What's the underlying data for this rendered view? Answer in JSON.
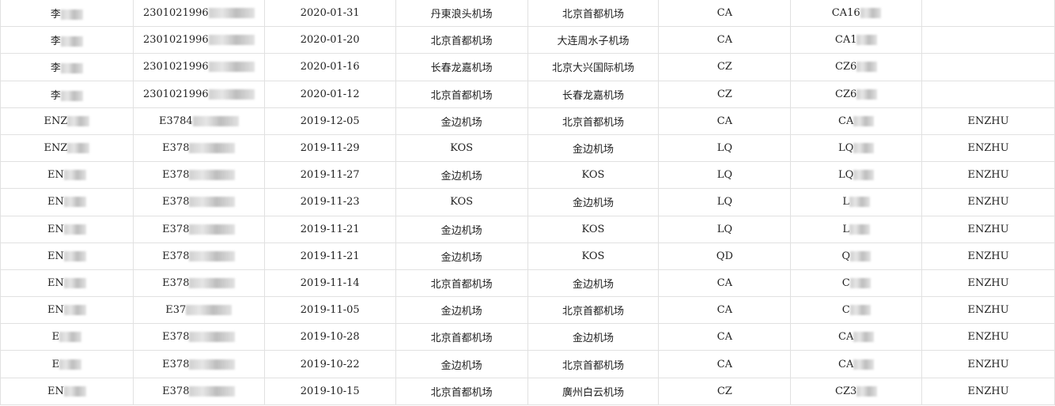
{
  "rows": [
    {
      "name": "李",
      "id": "2301021996",
      "date": "2020-01-31",
      "from": "丹東浪头机场",
      "to": "北京首都机场",
      "airline": "CA",
      "flight": "CA16",
      "note": ""
    },
    {
      "name": "李",
      "id": "2301021996",
      "date": "2020-01-20",
      "from": "北京首都机场",
      "to": "大连周水子机场",
      "airline": "CA",
      "flight": "CA1",
      "note": ""
    },
    {
      "name": "李",
      "id": "2301021996",
      "date": "2020-01-16",
      "from": "长春龙嘉机场",
      "to": "北京大兴国际机场",
      "airline": "CZ",
      "flight": "CZ6",
      "note": ""
    },
    {
      "name": "李",
      "id": "2301021996",
      "date": "2020-01-12",
      "from": "北京首都机场",
      "to": "长春龙嘉机场",
      "airline": "CZ",
      "flight": "CZ6",
      "note": ""
    },
    {
      "name": "ENZ",
      "id": "E3784",
      "date": "2019-12-05",
      "from": "金边机场",
      "to": "北京首都机场",
      "airline": "CA",
      "flight": "CA",
      "note": "ENZHU"
    },
    {
      "name": "ENZ",
      "id": "E378",
      "date": "2019-11-29",
      "from": "KOS",
      "to": "金边机场",
      "airline": "LQ",
      "flight": "LQ",
      "note": "ENZHU"
    },
    {
      "name": "EN",
      "id": "E378",
      "date": "2019-11-27",
      "from": "金边机场",
      "to": "KOS",
      "airline": "LQ",
      "flight": "LQ",
      "note": "ENZHU"
    },
    {
      "name": "EN",
      "id": "E378",
      "date": "2019-11-23",
      "from": "KOS",
      "to": "金边机场",
      "airline": "LQ",
      "flight": "L",
      "note": "ENZHU"
    },
    {
      "name": "EN",
      "id": "E378",
      "date": "2019-11-21",
      "from": "金边机场",
      "to": "KOS",
      "airline": "LQ",
      "flight": "L",
      "note": "ENZHU"
    },
    {
      "name": "EN",
      "id": "E378",
      "date": "2019-11-21",
      "from": "金边机场",
      "to": "KOS",
      "airline": "QD",
      "flight": "Q",
      "note": "ENZHU"
    },
    {
      "name": "EN",
      "id": "E378",
      "date": "2019-11-14",
      "from": "北京首都机场",
      "to": "金边机场",
      "airline": "CA",
      "flight": "C",
      "note": "ENZHU"
    },
    {
      "name": "EN",
      "id": "E37",
      "date": "2019-11-05",
      "from": "金边机场",
      "to": "北京首都机场",
      "airline": "CA",
      "flight": "C",
      "note": "ENZHU"
    },
    {
      "name": "E",
      "id": "E378",
      "date": "2019-10-28",
      "from": "北京首都机场",
      "to": "金边机场",
      "airline": "CA",
      "flight": "CA",
      "note": "ENZHU"
    },
    {
      "name": "E",
      "id": "E378",
      "date": "2019-10-22",
      "from": "金边机场",
      "to": "北京首都机场",
      "airline": "CA",
      "flight": "CA",
      "note": "ENZHU"
    },
    {
      "name": "EN",
      "id": "E378",
      "date": "2019-10-15",
      "from": "北京首都机场",
      "to": "廣州白云机场",
      "airline": "CZ",
      "flight": "CZ3",
      "note": "ENZHU"
    }
  ]
}
